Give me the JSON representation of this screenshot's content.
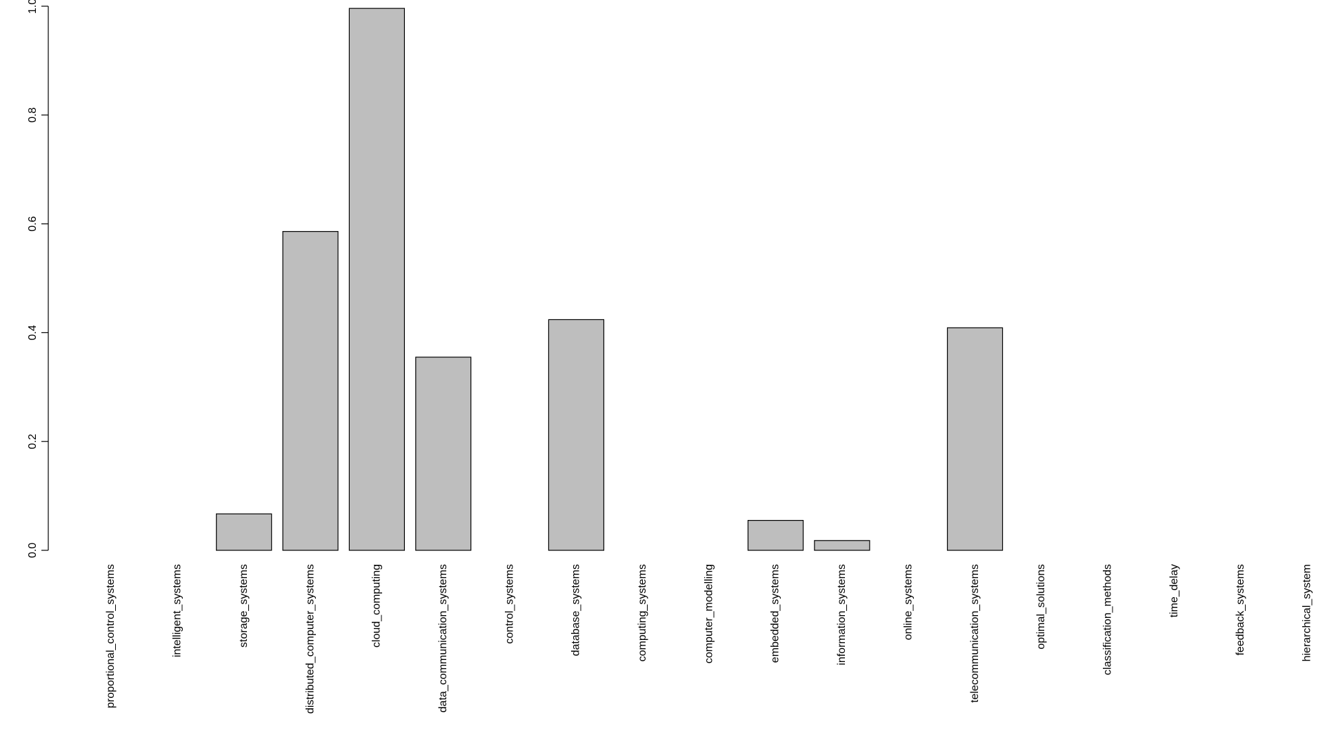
{
  "chart_data": {
    "type": "bar",
    "title": "",
    "xlabel": "",
    "ylabel": "",
    "categories": [
      "proportional_control_systems",
      "intelligent_systems",
      "storage_systems",
      "distributed_computer_systems",
      "cloud_computing",
      "data_communication_systems",
      "control_systems",
      "database_systems",
      "computing_systems",
      "computer_modelling",
      "embedded_systems",
      "information_systems",
      "online_systems",
      "telecommunication_systems",
      "optimal_solutions",
      "classification_methods",
      "time_delay",
      "feedback_systems",
      "hierarchical_system"
    ],
    "values": [
      0,
      0,
      0.067,
      0.586,
      0.996,
      0.355,
      0,
      0.424,
      0,
      0,
      0.055,
      0.018,
      0,
      0.409,
      0,
      0,
      0,
      0,
      0
    ],
    "ylim": [
      0,
      1.0
    ],
    "yticks": [
      0.0,
      0.2,
      0.4,
      0.6,
      0.8,
      1.0
    ],
    "ytick_labels": [
      "0.0",
      "0.2",
      "0.4",
      "0.6",
      "0.8",
      "1.0"
    ],
    "grid": false,
    "legend": "none",
    "colors": {
      "bar_fill": "#bebebe",
      "bar_stroke": "#000000",
      "axis": "#000000",
      "text": "#000000",
      "background": "#ffffff"
    }
  }
}
